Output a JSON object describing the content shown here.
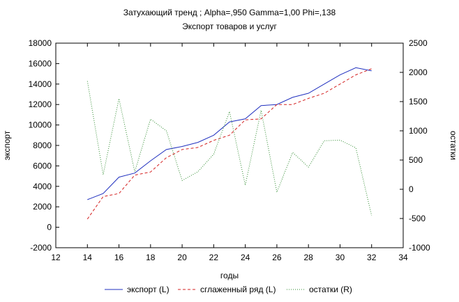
{
  "colors": {
    "background": "#ffffff",
    "plot_area": "#ffffff",
    "axis": "#000000",
    "export": "#1f2fbf",
    "smoothed": "#d42020",
    "residuals": "#2e8b2e"
  },
  "chart_data": {
    "type": "line",
    "title": "Затухающий тренд ; Alpha=,950 Gamma=1,00 Phi=,138",
    "subtitle": "Экспорт товаров и услуг",
    "xlabel": "годы",
    "ylabel_left": "экспорт",
    "ylabel_right": "остатки",
    "xlim": [
      12,
      34
    ],
    "ylim_left": [
      -2000,
      18000
    ],
    "ylim_right": [
      -1000,
      2500
    ],
    "x_ticks": [
      "12",
      "14",
      "16",
      "18",
      "20",
      "22",
      "24",
      "26",
      "28",
      "30",
      "32",
      "34"
    ],
    "y_left_ticks": [
      "-2000",
      "0",
      "2000",
      "4000",
      "6000",
      "8000",
      "10000",
      "12000",
      "14000",
      "16000",
      "18000"
    ],
    "y_right_ticks": [
      "-1000",
      "-500",
      "0",
      "500",
      "1000",
      "1500",
      "2000",
      "2500"
    ],
    "grid": false,
    "legend_position": "bottom",
    "x": [
      14,
      15,
      16,
      17,
      18,
      19,
      20,
      21,
      22,
      23,
      24,
      25,
      26,
      27,
      28,
      29,
      30,
      31,
      32
    ],
    "series": [
      {
        "name": "экспорт (L)",
        "axis": "left",
        "style": "solid",
        "values": [
          2700,
          3300,
          4900,
          5300,
          6500,
          7600,
          7900,
          8300,
          9000,
          10300,
          10600,
          11900,
          12000,
          12700,
          13100,
          14000,
          14900,
          15600,
          15300
        ]
      },
      {
        "name": "сглаженный ряд (L)",
        "axis": "left",
        "style": "dashed",
        "values": [
          800,
          3000,
          3300,
          5100,
          5400,
          6800,
          7600,
          7800,
          8500,
          9000,
          10500,
          10600,
          12000,
          12000,
          12600,
          13100,
          14000,
          14900,
          15500
        ]
      },
      {
        "name": "остатки (R)",
        "axis": "right",
        "style": "dotted",
        "values": [
          1850,
          250,
          1550,
          300,
          1200,
          1000,
          150,
          300,
          600,
          1330,
          70,
          1350,
          -50,
          630,
          380,
          830,
          840,
          710,
          -450
        ]
      }
    ]
  }
}
